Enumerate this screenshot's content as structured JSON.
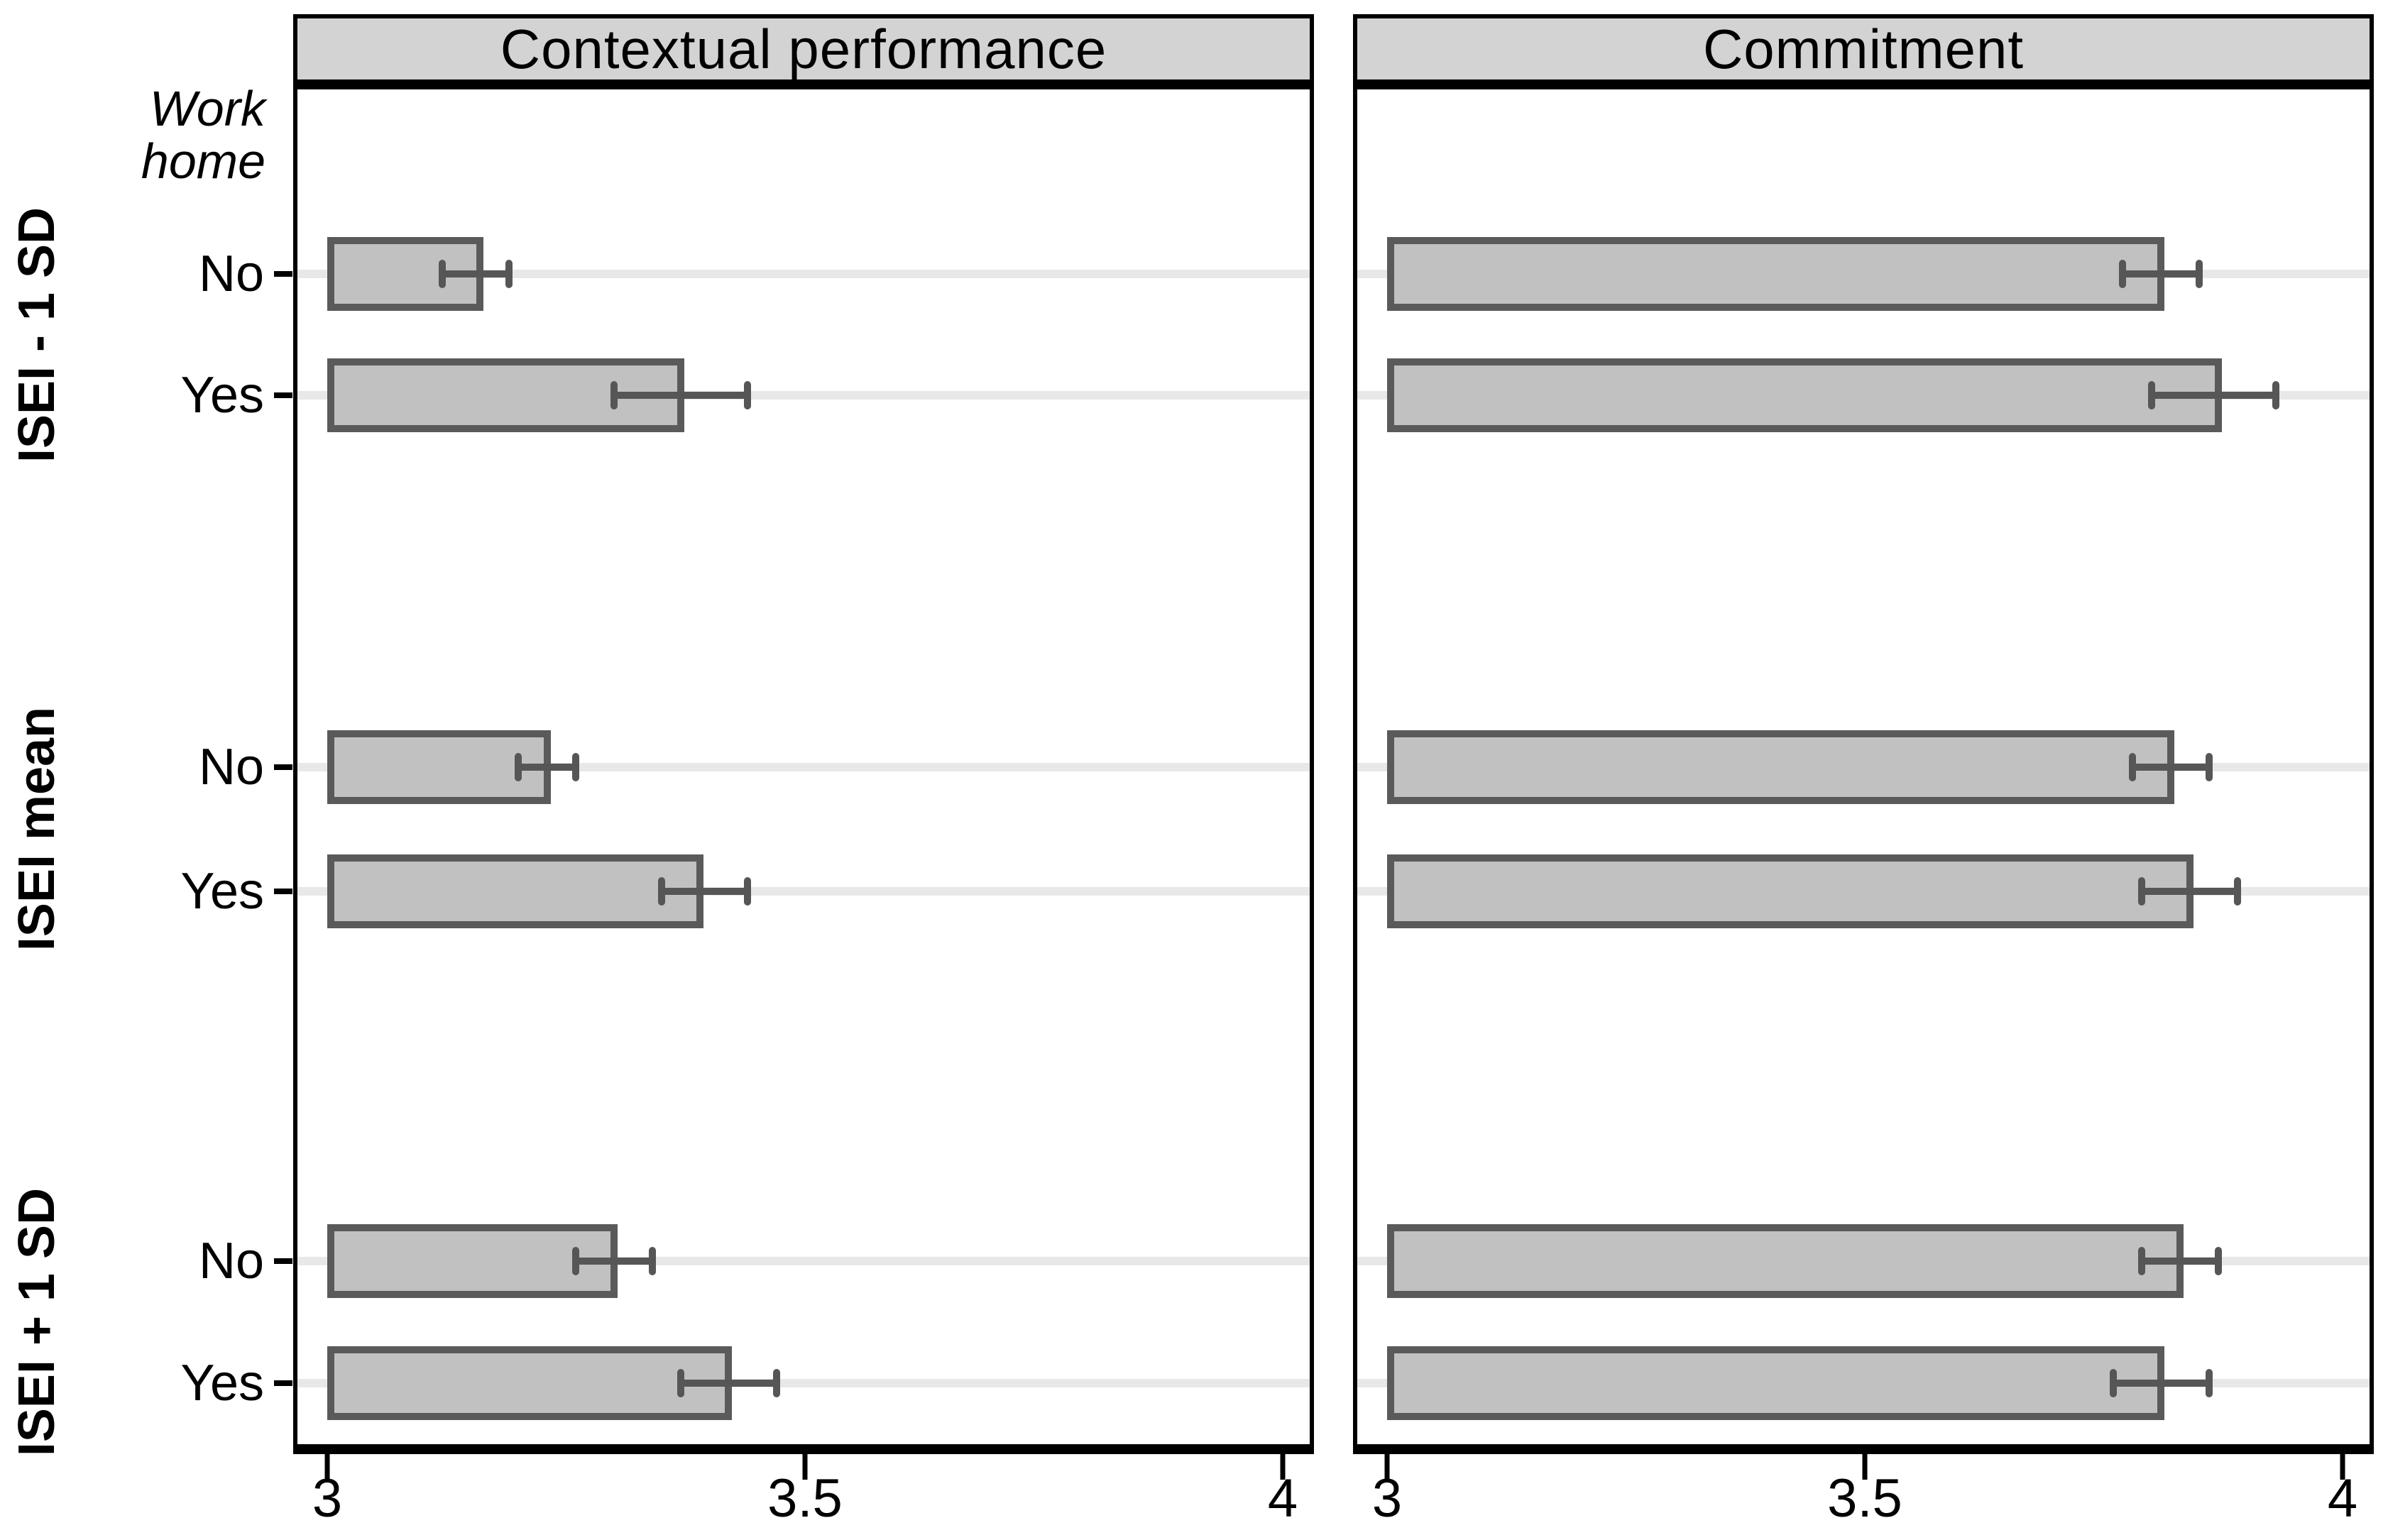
{
  "left_axis_header": {
    "line1": "Work",
    "line2": "home"
  },
  "colors": {
    "header_bg": "#d3d3d3",
    "bar_fill": "#c1c1c1",
    "bar_border": "#5a5a5a",
    "whisker": "#565656",
    "gridline": "#e8e8e8",
    "frame": "#000000",
    "background": "#ffffff"
  },
  "chart_data": [
    {
      "type": "bar",
      "orientation": "horizontal",
      "title": "Contextual performance",
      "xlabel": "",
      "ylabel": "",
      "xlim": [
        3,
        4
      ],
      "x_ticks": [
        "3",
        "3.5",
        "4"
      ],
      "x_tick_values": [
        3,
        3.5,
        4
      ],
      "grid": true,
      "error_bars": true,
      "groups": [
        {
          "label": "ISEI - 1 SD",
          "bars": [
            {
              "label": "No",
              "value": 3.16,
              "ci_low": 3.12,
              "ci_high": 3.19
            },
            {
              "label": "Yes",
              "value": 3.37,
              "ci_low": 3.3,
              "ci_high": 3.44
            }
          ]
        },
        {
          "label": "ISEI mean",
          "bars": [
            {
              "label": "No",
              "value": 3.23,
              "ci_low": 3.2,
              "ci_high": 3.26
            },
            {
              "label": "Yes",
              "value": 3.39,
              "ci_low": 3.35,
              "ci_high": 3.44
            }
          ]
        },
        {
          "label": "ISEI + 1 SD",
          "bars": [
            {
              "label": "No",
              "value": 3.3,
              "ci_low": 3.26,
              "ci_high": 3.34
            },
            {
              "label": "Yes",
              "value": 3.42,
              "ci_low": 3.37,
              "ci_high": 3.47
            }
          ]
        }
      ]
    },
    {
      "type": "bar",
      "orientation": "horizontal",
      "title": "Commitment",
      "xlabel": "",
      "ylabel": "",
      "xlim": [
        3,
        4
      ],
      "x_ticks": [
        "3",
        "3.5",
        "4"
      ],
      "x_tick_values": [
        3,
        3.5,
        4
      ],
      "grid": true,
      "error_bars": true,
      "groups": [
        {
          "label": "ISEI - 1 SD",
          "bars": [
            {
              "label": "No",
              "value": 3.81,
              "ci_low": 3.77,
              "ci_high": 3.85
            },
            {
              "label": "Yes",
              "value": 3.87,
              "ci_low": 3.8,
              "ci_high": 3.93
            }
          ]
        },
        {
          "label": "ISEI mean",
          "bars": [
            {
              "label": "No",
              "value": 3.82,
              "ci_low": 3.78,
              "ci_high": 3.86
            },
            {
              "label": "Yes",
              "value": 3.84,
              "ci_low": 3.79,
              "ci_high": 3.89
            }
          ]
        },
        {
          "label": "ISEI + 1 SD",
          "bars": [
            {
              "label": "No",
              "value": 3.83,
              "ci_low": 3.79,
              "ci_high": 3.87
            },
            {
              "label": "Yes",
              "value": 3.81,
              "ci_low": 3.76,
              "ci_high": 3.86
            }
          ]
        }
      ]
    }
  ]
}
